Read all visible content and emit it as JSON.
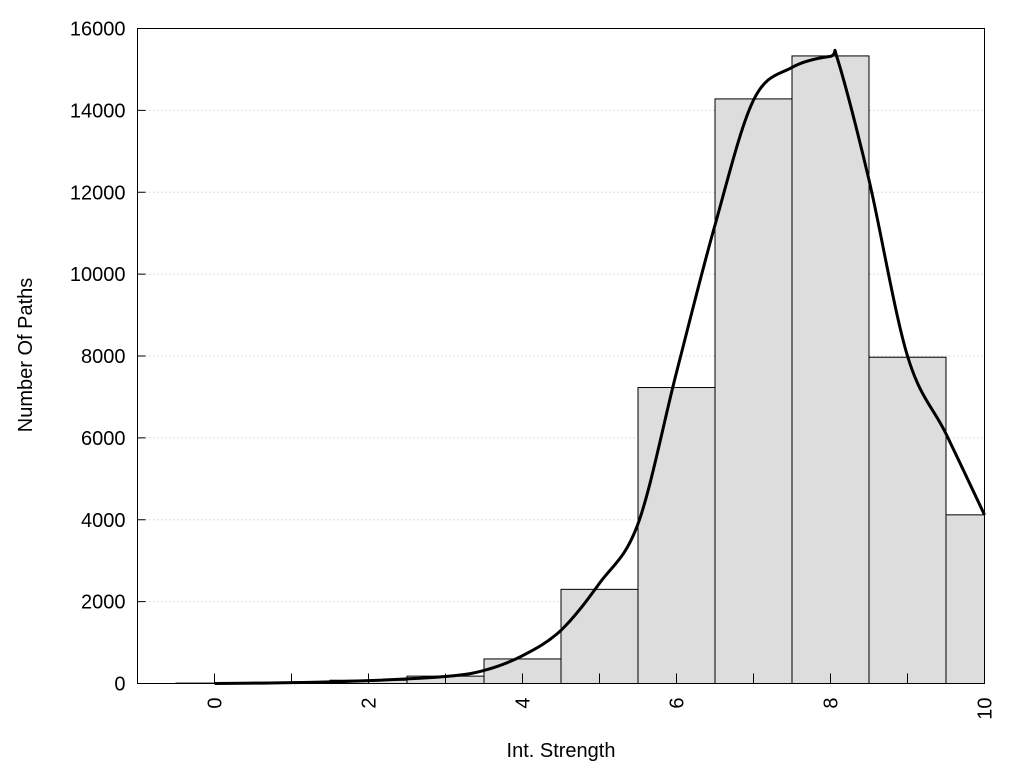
{
  "chart_data": {
    "type": "bar",
    "title": "",
    "xlabel": "Int. Strength",
    "ylabel": "Number Of Paths",
    "xlim": [
      -1,
      10
    ],
    "ylim": [
      0,
      16000
    ],
    "xticks": [
      "0",
      "2",
      "4",
      "6",
      "8",
      "10"
    ],
    "yticks": [
      "0",
      "2000",
      "4000",
      "6000",
      "8000",
      "10000",
      "12000",
      "14000",
      "16000"
    ],
    "grid": "horizontal dotted",
    "bars": {
      "x": [
        0,
        1,
        2,
        3,
        4,
        5,
        6,
        7,
        8,
        9,
        10
      ],
      "values": [
        10,
        30,
        80,
        180,
        600,
        2300,
        7230,
        14280,
        15330,
        7970,
        4120
      ],
      "color": "#dddddd"
    },
    "curve": {
      "x": [
        0,
        1,
        2,
        3,
        3.5,
        4,
        4.5,
        5,
        5.5,
        6,
        6.5,
        7,
        7.5,
        8,
        8.1,
        8.5,
        9,
        9.5,
        10
      ],
      "y": [
        0,
        20,
        70,
        170,
        320,
        680,
        1300,
        2450,
        3900,
        7600,
        11200,
        14250,
        15050,
        15320,
        15200,
        12300,
        8000,
        6100,
        4120
      ]
    }
  }
}
